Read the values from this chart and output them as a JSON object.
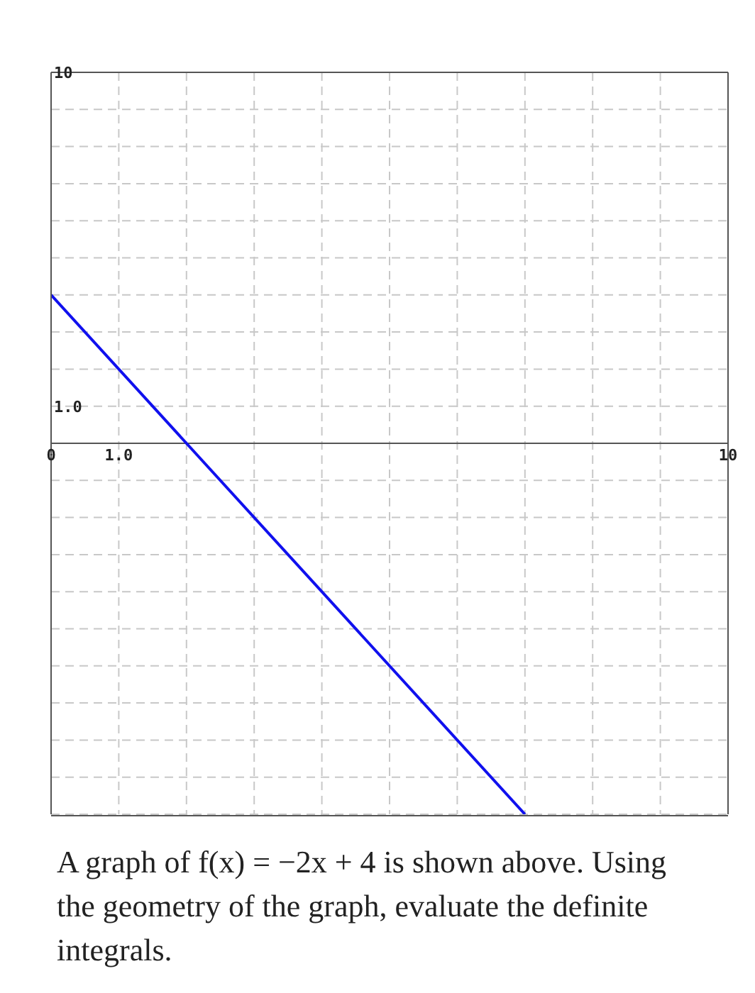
{
  "chart_data": {
    "type": "line",
    "x": [
      0,
      7
    ],
    "series": [
      {
        "color": "#1010ee",
        "values": [
          4,
          -10
        ]
      }
    ],
    "xlim": [
      0,
      10
    ],
    "xticks": [
      {
        "value": 0,
        "label": "0"
      },
      {
        "value": 1,
        "label": "1.0"
      },
      {
        "value": 2,
        "label": null
      },
      {
        "value": 3,
        "label": null
      },
      {
        "value": 4,
        "label": null
      },
      {
        "value": 5,
        "label": null
      },
      {
        "value": 6,
        "label": null
      },
      {
        "value": 7,
        "label": null
      },
      {
        "value": 8,
        "label": null
      },
      {
        "value": 9,
        "label": null
      },
      10
    ],
    "ylim": [
      -10,
      10
    ],
    "yticks": [
      {
        "value": -10,
        "label": null
      },
      {
        "value": -9,
        "label": null
      },
      {
        "value": -8,
        "label": null
      },
      {
        "value": -7,
        "label": null
      },
      {
        "value": -6,
        "label": null
      },
      {
        "value": -5,
        "label": null
      },
      {
        "value": -4,
        "label": null
      },
      {
        "value": -3,
        "label": null
      },
      {
        "value": -2,
        "label": null
      },
      {
        "value": -1,
        "label": null
      },
      {
        "value": 0,
        "label": null
      },
      {
        "value": 1,
        "label": "1.0"
      },
      {
        "value": 2,
        "label": null
      },
      {
        "value": 3,
        "label": null
      },
      {
        "value": 4,
        "label": null
      },
      {
        "value": 5,
        "label": null
      },
      {
        "value": 6,
        "label": null
      },
      {
        "value": 7,
        "label": null
      },
      {
        "value": 8,
        "label": null
      },
      {
        "value": 9,
        "label": null
      },
      10
    ],
    "grid": true,
    "marker": "none",
    "line_style": "solid",
    "annotations": [
      "A graph of f(x) = −2x + 4 is shown above. Using the geometry of the graph, evaluate the definite integrals."
    ]
  }
}
